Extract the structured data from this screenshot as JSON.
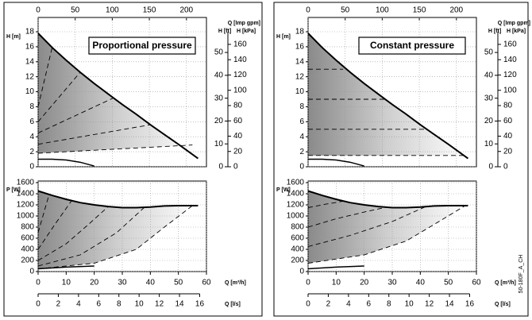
{
  "figure_code": "50-180F_A_CH",
  "chart_data": [
    {
      "type": "line",
      "title": "Proportional pressure",
      "xlim": [
        0,
        60
      ],
      "axes": [
        {
          "position": "top",
          "label": "Q [Imp gpm]",
          "lim": [
            0,
            227
          ],
          "ticks": [
            0,
            50,
            100,
            150,
            200
          ],
          "grid": true
        },
        {
          "position": "left",
          "label": "H [m]",
          "lim": [
            0,
            18
          ],
          "ticks": [
            0,
            2,
            4,
            6,
            8,
            10,
            12,
            14,
            16,
            18
          ],
          "grid": true
        },
        {
          "position": "right",
          "label": "H [ft]",
          "lim": [
            0,
            59.06
          ],
          "ticks": [
            0,
            10,
            20,
            30,
            40,
            50
          ]
        },
        {
          "position": "right-outer",
          "label": "H [kPa]",
          "lim": [
            0,
            176.5
          ],
          "ticks": [
            0,
            20,
            40,
            60,
            80,
            100,
            120,
            140,
            160
          ]
        }
      ],
      "series": [
        {
          "color": "#000000",
          "style": "solid",
          "x": [
            0,
            5,
            10,
            15,
            20,
            25,
            30,
            35,
            40,
            45,
            50,
            57
          ],
          "values": [
            17.8,
            15.9,
            14.2,
            12.6,
            11.1,
            9.7,
            8.3,
            7,
            5.6,
            4.3,
            3,
            1.1
          ]
        },
        {
          "color": "#000000",
          "style": "solid",
          "x": [
            0,
            5,
            10,
            15,
            20
          ],
          "values": [
            1,
            1,
            0.9,
            0.6,
            0.1
          ]
        },
        {
          "color": "#000000",
          "style": "dashed",
          "x": [
            0,
            5
          ],
          "values": [
            8,
            15.9
          ]
        },
        {
          "color": "#000000",
          "style": "dashed",
          "x": [
            0,
            15
          ],
          "values": [
            6,
            12.6
          ]
        },
        {
          "color": "#000000",
          "style": "dashed",
          "x": [
            0,
            27
          ],
          "values": [
            4.5,
            9.2
          ]
        },
        {
          "color": "#000000",
          "style": "dashed",
          "x": [
            0,
            40
          ],
          "values": [
            3,
            5.6
          ]
        },
        {
          "color": "#000000",
          "style": "dashed",
          "x": [
            0,
            55
          ],
          "values": [
            1.8,
            2.9
          ]
        }
      ]
    },
    {
      "type": "line",
      "xlim": [
        0,
        60
      ],
      "axes": [
        {
          "position": "left",
          "label": "P [W]",
          "lim": [
            0,
            1600
          ],
          "ticks": [
            0,
            200,
            400,
            600,
            800,
            1000,
            1200,
            1400,
            1600
          ],
          "grid": true
        },
        {
          "position": "bottom",
          "label": "Q [m³/h]",
          "lim": [
            0,
            60
          ],
          "ticks": [
            0,
            10,
            20,
            30,
            40,
            50,
            60
          ],
          "grid": true
        },
        {
          "position": "bottom-outer",
          "label": "Q [l/s]",
          "lim": [
            0,
            16.67
          ],
          "ticks": [
            0,
            2,
            4,
            6,
            8,
            10,
            12,
            14,
            16
          ]
        }
      ],
      "series": [
        {
          "color": "#000000",
          "style": "solid",
          "x": [
            0,
            5,
            10,
            15,
            20,
            25,
            30,
            35,
            40,
            45,
            50,
            57
          ],
          "values": [
            1450,
            1370,
            1300,
            1240,
            1200,
            1170,
            1150,
            1150,
            1160,
            1180,
            1185,
            1185
          ]
        },
        {
          "color": "#000000",
          "style": "solid",
          "x": [
            0,
            10,
            20
          ],
          "values": [
            50,
            80,
            100
          ]
        },
        {
          "color": "#000000",
          "style": "dashed",
          "x": [
            0,
            2,
            4
          ],
          "values": [
            700,
            1050,
            1400
          ]
        },
        {
          "color": "#000000",
          "style": "dashed",
          "x": [
            0,
            6,
            12
          ],
          "values": [
            400,
            850,
            1280
          ]
        },
        {
          "color": "#000000",
          "style": "dashed",
          "x": [
            0,
            10,
            18,
            25
          ],
          "values": [
            200,
            500,
            850,
            1170
          ]
        },
        {
          "color": "#000000",
          "style": "dashed",
          "x": [
            0,
            15,
            28,
            38
          ],
          "values": [
            100,
            300,
            700,
            1160
          ]
        },
        {
          "color": "#000000",
          "style": "dashed",
          "x": [
            0,
            20,
            35,
            45,
            55
          ],
          "values": [
            50,
            150,
            400,
            800,
            1185
          ]
        }
      ]
    },
    {
      "type": "line",
      "title": "Constant pressure",
      "xlim": [
        0,
        60
      ],
      "axes": [
        {
          "position": "top",
          "label": "Q [Imp gpm]",
          "lim": [
            0,
            227
          ],
          "ticks": [
            0,
            50,
            100,
            150,
            200
          ],
          "grid": true
        },
        {
          "position": "left",
          "label": "H [m]",
          "lim": [
            0,
            18
          ],
          "ticks": [
            0,
            2,
            4,
            6,
            8,
            10,
            12,
            14,
            16,
            18
          ],
          "grid": true
        },
        {
          "position": "right",
          "label": "H [ft]",
          "lim": [
            0,
            59.06
          ],
          "ticks": [
            0,
            10,
            20,
            30,
            40,
            50
          ]
        },
        {
          "position": "right-outer",
          "label": "H [kPa]",
          "lim": [
            0,
            176.5
          ],
          "ticks": [
            0,
            20,
            40,
            60,
            80,
            100,
            120,
            140,
            160
          ]
        }
      ],
      "series": [
        {
          "color": "#000000",
          "style": "solid",
          "x": [
            0,
            5,
            10,
            15,
            20,
            25,
            30,
            35,
            40,
            45,
            50,
            57
          ],
          "values": [
            17.8,
            15.9,
            14.2,
            12.6,
            11.1,
            9.7,
            8.3,
            7,
            5.6,
            4.3,
            3,
            1.1
          ]
        },
        {
          "color": "#000000",
          "style": "solid",
          "x": [
            0,
            5,
            10,
            15,
            20
          ],
          "values": [
            1,
            1,
            0.9,
            0.6,
            0.1
          ]
        },
        {
          "color": "#000000",
          "style": "dashed",
          "x": [
            0,
            12.5
          ],
          "values": [
            13,
            13
          ]
        },
        {
          "color": "#000000",
          "style": "dashed",
          "x": [
            0,
            28
          ],
          "values": [
            9,
            9
          ]
        },
        {
          "color": "#000000",
          "style": "dashed",
          "x": [
            0,
            42
          ],
          "values": [
            5,
            5
          ]
        },
        {
          "color": "#000000",
          "style": "dashed",
          "x": [
            0,
            55.5
          ],
          "values": [
            1.5,
            1.5
          ]
        }
      ]
    },
    {
      "type": "line",
      "xlim": [
        0,
        60
      ],
      "axes": [
        {
          "position": "left",
          "label": "P [W]",
          "lim": [
            0,
            1600
          ],
          "ticks": [
            0,
            200,
            400,
            600,
            800,
            1000,
            1200,
            1400,
            1600
          ],
          "grid": true
        },
        {
          "position": "bottom",
          "label": "Q [m³/h]",
          "lim": [
            0,
            60
          ],
          "ticks": [
            0,
            10,
            20,
            30,
            40,
            50,
            60
          ],
          "grid": true
        },
        {
          "position": "bottom-outer",
          "label": "Q [l/s]",
          "lim": [
            0,
            16.67
          ],
          "ticks": [
            0,
            2,
            4,
            6,
            8,
            10,
            12,
            14,
            16
          ]
        }
      ],
      "series": [
        {
          "color": "#000000",
          "style": "solid",
          "x": [
            0,
            5,
            10,
            15,
            20,
            25,
            30,
            35,
            40,
            45,
            50,
            57
          ],
          "values": [
            1450,
            1370,
            1300,
            1240,
            1200,
            1170,
            1150,
            1150,
            1160,
            1180,
            1185,
            1185
          ]
        },
        {
          "color": "#000000",
          "style": "solid",
          "x": [
            0,
            10,
            20
          ],
          "values": [
            50,
            80,
            100
          ]
        },
        {
          "color": "#000000",
          "style": "dashed",
          "x": [
            0,
            6,
            13
          ],
          "values": [
            1150,
            1210,
            1270
          ]
        },
        {
          "color": "#000000",
          "style": "dashed",
          "x": [
            0,
            10,
            20,
            28
          ],
          "values": [
            800,
            950,
            1070,
            1160
          ]
        },
        {
          "color": "#000000",
          "style": "dashed",
          "x": [
            0,
            15,
            30,
            42
          ],
          "values": [
            450,
            650,
            900,
            1170
          ]
        },
        {
          "color": "#000000",
          "style": "dashed",
          "x": [
            0,
            20,
            35,
            45,
            56
          ],
          "values": [
            150,
            300,
            550,
            850,
            1185
          ]
        }
      ]
    }
  ]
}
